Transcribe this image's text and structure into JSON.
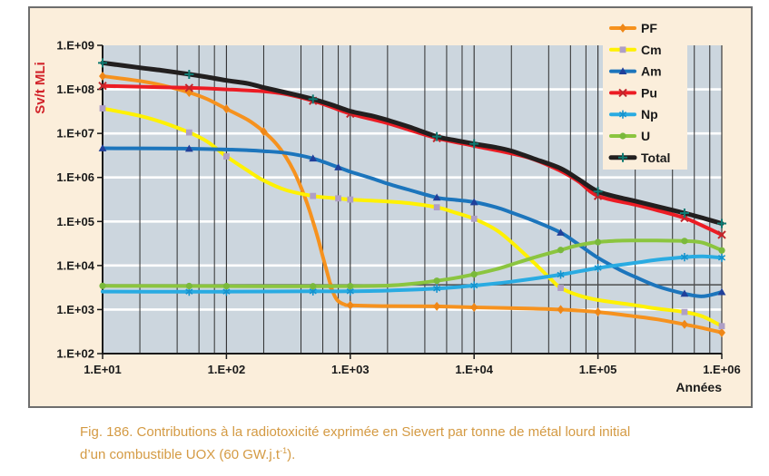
{
  "figure": {
    "caption_line1": "Fig. 186. Contributions à la radiotoxicité exprimée en Sievert par tonne de métal lourd initial",
    "caption_line2_prefix": "d’un combustible UOX (60 GW.j.t",
    "caption_sup": "-1",
    "caption_line2_suffix": ").",
    "caption_color": "#D49A43"
  },
  "chart_data": {
    "type": "line",
    "title": "",
    "xlabel": "Années",
    "ylabel": "Sv/t MLi",
    "x_scale": "log",
    "y_scale": "log",
    "xlim": [
      10,
      1000000
    ],
    "ylim": [
      100,
      1000000000
    ],
    "grid": {
      "horizontal_white_decades": true,
      "vertical_dark_decades": true,
      "minor_grid_multiples": [
        2,
        4,
        6,
        8
      ]
    },
    "legend_position": "top-right-overlay",
    "x_ticks": [
      {
        "label": "1.E+01",
        "value": 10
      },
      {
        "label": "1.E+02",
        "value": 100
      },
      {
        "label": "1.E+03",
        "value": 1000
      },
      {
        "label": "1.E+04",
        "value": 10000
      },
      {
        "label": "1.E+05",
        "value": 100000
      },
      {
        "label": "1.E+06",
        "value": 1000000
      }
    ],
    "y_ticks": [
      {
        "label": "1.E+09",
        "value": 1000000000
      },
      {
        "label": "1.E+08",
        "value": 100000000
      },
      {
        "label": "1.E+07",
        "value": 10000000
      },
      {
        "label": "1.E+06",
        "value": 1000000
      },
      {
        "label": "1.E+05",
        "value": 100000
      },
      {
        "label": "1.E+04",
        "value": 10000
      },
      {
        "label": "1.E+03",
        "value": 1000
      },
      {
        "label": "1.E+02",
        "value": 100
      }
    ],
    "reference_line": {
      "value": 3650,
      "color": "#4D4D4D"
    },
    "colors": {
      "figure_bg": "#FBEEDB",
      "plot_bg": "#CCD6DE",
      "grid_dark": "#2E2E2E",
      "grid_white": "#FFFFFF",
      "axis": "#1A1A1A",
      "y_title": "#D2232A"
    },
    "series": [
      {
        "name": "PF",
        "color": "#F6921E",
        "marker": "diamond",
        "marker_color": "#EF8717",
        "width": 4,
        "points": [
          [
            10,
            200000000.0
          ],
          [
            20,
            155000000.0
          ],
          [
            30,
            125000000.0
          ],
          [
            50,
            85000000.0
          ],
          [
            70,
            60000000.0
          ],
          [
            100,
            36000000.0
          ],
          [
            150,
            20000000.0
          ],
          [
            200,
            11000000.0
          ],
          [
            250,
            6000000.0
          ],
          [
            300,
            3000000.0
          ],
          [
            350,
            1400000.0
          ],
          [
            400,
            600000.0
          ],
          [
            450,
            250000.0
          ],
          [
            500,
            100000.0
          ],
          [
            550,
            40000.0
          ],
          [
            600,
            16000.0
          ],
          [
            650,
            7000.0
          ],
          [
            700,
            3300.0
          ],
          [
            750,
            2000.0
          ],
          [
            800,
            1550.0
          ],
          [
            900,
            1300.0
          ],
          [
            1000,
            1250.0
          ],
          [
            2000,
            1200.0
          ],
          [
            5000,
            1180.0
          ],
          [
            10000,
            1120.0
          ],
          [
            30000,
            1050.0
          ],
          [
            50000,
            1000.0
          ],
          [
            100000,
            880.0
          ],
          [
            200000,
            700.0
          ],
          [
            300000,
            600.0
          ],
          [
            500000,
            460.0
          ],
          [
            700000,
            380.0
          ],
          [
            1000000,
            300.0
          ]
        ],
        "marker_at": [
          10,
          50,
          100,
          200,
          700,
          1000,
          5000,
          10000,
          50000,
          100000,
          500000,
          1000000
        ]
      },
      {
        "name": "Cm",
        "color": "#FFF101",
        "marker": "square",
        "marker_color": "#AF9FC6",
        "width": 4,
        "points": [
          [
            10,
            37000000.0
          ],
          [
            20,
            25000000.0
          ],
          [
            30,
            18000000.0
          ],
          [
            50,
            10500000.0
          ],
          [
            70,
            6500000.0
          ],
          [
            100,
            3000000.0
          ],
          [
            150,
            1400000.0
          ],
          [
            200,
            850000.0
          ],
          [
            300,
            520000.0
          ],
          [
            500,
            380000.0
          ],
          [
            700,
            345000.0
          ],
          [
            800,
            335000.0
          ],
          [
            1000,
            315000.0
          ],
          [
            2000,
            285000.0
          ],
          [
            3000,
            260000.0
          ],
          [
            5000,
            210000.0
          ],
          [
            7000,
            160000.0
          ],
          [
            10000,
            115000.0
          ],
          [
            15000,
            65000.0
          ],
          [
            20000,
            34000.0
          ],
          [
            30000,
            12000.0
          ],
          [
            40000,
            5500.0
          ],
          [
            50000,
            3100.0
          ],
          [
            70000,
            2100.0
          ],
          [
            100000,
            1650.0
          ],
          [
            200000,
            1250.0
          ],
          [
            300000,
            1050.0
          ],
          [
            500000,
            880.0
          ],
          [
            700000,
            700.0
          ],
          [
            1000000,
            420.0
          ]
        ],
        "marker_at": [
          10,
          50,
          100,
          500,
          800,
          1000,
          5000,
          10000,
          50000,
          500000,
          1000000
        ]
      },
      {
        "name": "Am",
        "color": "#1C75BC",
        "marker": "triangle",
        "marker_color": "#21409A",
        "width": 4,
        "points": [
          [
            10,
            4600000.0
          ],
          [
            30,
            4550000.0
          ],
          [
            50,
            4500000.0
          ],
          [
            100,
            4300000.0
          ],
          [
            150,
            4150000.0
          ],
          [
            200,
            3950000.0
          ],
          [
            300,
            3600000.0
          ],
          [
            500,
            2700000.0
          ],
          [
            800,
            1700000.0
          ],
          [
            1000,
            1350000.0
          ],
          [
            1500,
            950000.0
          ],
          [
            2000,
            720000.0
          ],
          [
            3000,
            520000.0
          ],
          [
            5000,
            350000.0
          ],
          [
            7000,
            310000.0
          ],
          [
            10000,
            275000.0
          ],
          [
            15000,
            210000.0
          ],
          [
            20000,
            160000.0
          ],
          [
            30000,
            105000.0
          ],
          [
            50000,
            56000.0
          ],
          [
            70000,
            30000.0
          ],
          [
            100000,
            15000.0
          ],
          [
            150000,
            8000.0
          ],
          [
            200000,
            5500.0
          ],
          [
            300000,
            3400.0
          ],
          [
            500000,
            2300.0
          ],
          [
            700000,
            2000.0
          ],
          [
            1000000,
            2500.0
          ]
        ],
        "marker_at": [
          10,
          50,
          500,
          800,
          5000,
          10000,
          50000,
          500000,
          1000000
        ]
      },
      {
        "name": "Pu",
        "color": "#EC1C24",
        "marker": "x",
        "marker_color": "#C0272D",
        "width": 4,
        "points": [
          [
            10,
            120000000.0
          ],
          [
            30,
            112000000.0
          ],
          [
            50,
            108000000.0
          ],
          [
            100,
            100000000.0
          ],
          [
            200,
            90000000.0
          ],
          [
            300,
            78000000.0
          ],
          [
            500,
            55000000.0
          ],
          [
            700,
            40000000.0
          ],
          [
            1000,
            28000000.0
          ],
          [
            2000,
            17000000.0
          ],
          [
            3000,
            12000000.0
          ],
          [
            5000,
            7800000.0
          ],
          [
            10000,
            5200000.0
          ],
          [
            20000,
            3500000.0
          ],
          [
            30000,
            2600000.0
          ],
          [
            50000,
            1400000.0
          ],
          [
            70000,
            800000.0
          ],
          [
            100000,
            380000.0
          ],
          [
            200000,
            240000.0
          ],
          [
            300000,
            180000.0
          ],
          [
            500000,
            120000.0
          ],
          [
            700000,
            80000.0
          ],
          [
            1000000,
            50000.0
          ]
        ],
        "marker_at": [
          10,
          50,
          500,
          1000,
          5000,
          100000,
          500000,
          1000000
        ]
      },
      {
        "name": "Np",
        "color": "#29ABE2",
        "marker": "asterisk",
        "marker_color": "#1593CE",
        "width": 4,
        "points": [
          [
            10,
            2550.0
          ],
          [
            50,
            2550.0
          ],
          [
            100,
            2550.0
          ],
          [
            500,
            2600.0
          ],
          [
            1000,
            2600.0
          ],
          [
            2000,
            2700.0
          ],
          [
            5000,
            3000.0
          ],
          [
            10000,
            3500.0
          ],
          [
            20000,
            4300.0
          ],
          [
            50000,
            6200.0
          ],
          [
            100000,
            8800.0
          ],
          [
            200000,
            11500.0
          ],
          [
            300000,
            13500.0
          ],
          [
            500000,
            15500.0
          ],
          [
            700000,
            16200.0
          ],
          [
            1000000,
            15000.0
          ]
        ],
        "marker_at": [
          50,
          100,
          500,
          1000,
          5000,
          10000,
          50000,
          100000,
          500000,
          1000000
        ]
      },
      {
        "name": "U",
        "color": "#8BC53F",
        "marker": "circle",
        "marker_color": "#7AB93C",
        "width": 4,
        "points": [
          [
            10,
            3450.0
          ],
          [
            50,
            3420.0
          ],
          [
            100,
            3400.0
          ],
          [
            500,
            3380.0
          ],
          [
            1000,
            3400.0
          ],
          [
            2000,
            3500.0
          ],
          [
            3000,
            3800.0
          ],
          [
            5000,
            4500.0
          ],
          [
            7000,
            5200.0
          ],
          [
            10000,
            6300.0
          ],
          [
            15000,
            8200.0
          ],
          [
            20000,
            10500.0
          ],
          [
            30000,
            15000.0
          ],
          [
            50000,
            22500.0
          ],
          [
            70000,
            29000.0
          ],
          [
            100000,
            34000.0
          ],
          [
            150000,
            36500.0
          ],
          [
            200000,
            37000.0
          ],
          [
            300000,
            37000.0
          ],
          [
            500000,
            36000.0
          ],
          [
            700000,
            33000.0
          ],
          [
            1000000,
            22000.0
          ]
        ],
        "marker_at": [
          10,
          50,
          100,
          500,
          1000,
          5000,
          10000,
          50000,
          100000,
          500000,
          1000000
        ]
      },
      {
        "name": "Total",
        "color": "#221F1F",
        "marker": "plus",
        "marker_color": "#0E7A72",
        "width": 5,
        "points": [
          [
            10,
            400000000.0
          ],
          [
            20,
            310000000.0
          ],
          [
            30,
            270000000.0
          ],
          [
            50,
            220000000.0
          ],
          [
            70,
            190000000.0
          ],
          [
            100,
            160000000.0
          ],
          [
            150,
            135000000.0
          ],
          [
            200,
            110000000.0
          ],
          [
            300,
            85000000.0
          ],
          [
            500,
            60000000.0
          ],
          [
            700,
            45000000.0
          ],
          [
            1000,
            32000000.0
          ],
          [
            1500,
            25000000.0
          ],
          [
            2000,
            20000000.0
          ],
          [
            3000,
            14000000.0
          ],
          [
            5000,
            8500000.0
          ],
          [
            7000,
            7000000.0
          ],
          [
            10000,
            5800000.0
          ],
          [
            15000,
            4800000.0
          ],
          [
            20000,
            4000000.0
          ],
          [
            30000,
            2700000.0
          ],
          [
            50000,
            1600000.0
          ],
          [
            70000,
            900000.0
          ],
          [
            100000,
            480000.0
          ],
          [
            150000,
            350000.0
          ],
          [
            200000,
            290000.0
          ],
          [
            300000,
            220000.0
          ],
          [
            500000,
            155000.0
          ],
          [
            700000,
            120000.0
          ],
          [
            1000000,
            90000.0
          ]
        ],
        "marker_at": [
          10,
          50,
          500,
          5000,
          10000,
          100000,
          500000,
          1000000
        ]
      }
    ]
  }
}
